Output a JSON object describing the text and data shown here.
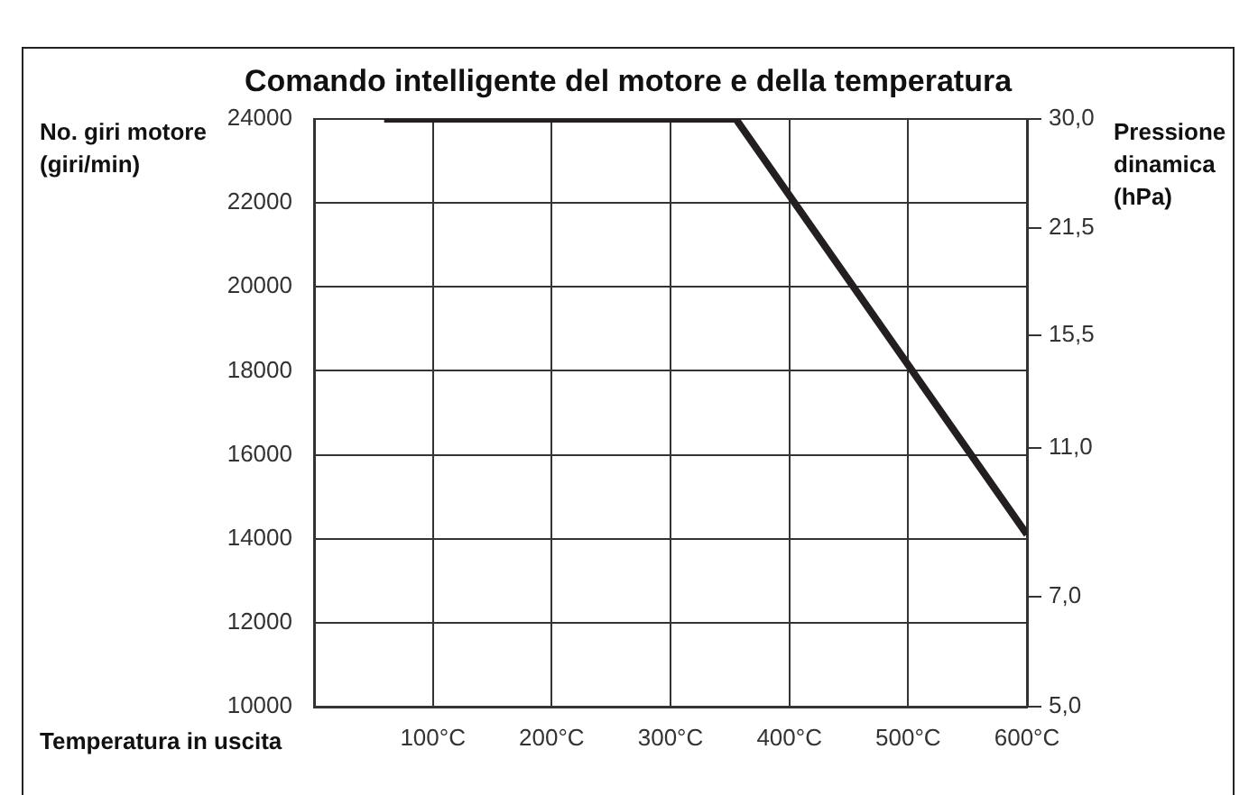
{
  "chart_data": {
    "type": "line",
    "title": "Comando intelligente del motore e della temperatura",
    "ylabel": "No. giri motore (giri/min)",
    "y2label": "Pressione dinamica (hPa)",
    "xlabel": "Temperatura in uscita",
    "series": [
      {
        "color": "#231f20",
        "x": [
          59,
          355,
          600
        ],
        "values": [
          24000,
          24000,
          14100
        ]
      }
    ],
    "xlim": [
      0,
      600
    ],
    "xticks": [
      {
        "value": 100,
        "label": "100°C"
      },
      {
        "value": 200,
        "label": "200°C"
      },
      {
        "value": 300,
        "label": "300°C"
      },
      {
        "value": 400,
        "label": "400°C"
      },
      {
        "value": 500,
        "label": "500°C"
      },
      {
        "value": 600,
        "label": "600°C"
      }
    ],
    "ylim": [
      10000,
      24000
    ],
    "yticks": [
      10000,
      12000,
      14000,
      16000,
      18000,
      20000,
      22000,
      24000
    ],
    "y2lim": [
      5,
      30
    ],
    "log": "y2",
    "y2ticks": [
      {
        "value": 30,
        "label": "30,0"
      },
      {
        "value": 21.5,
        "label": "21,5"
      },
      {
        "value": 15.5,
        "label": "15,5"
      },
      {
        "value": 11,
        "label": "11,0"
      },
      {
        "value": 7,
        "label": "7,0"
      },
      {
        "value": 5,
        "label": "5,0"
      }
    ],
    "grid": true,
    "marker": "none",
    "line_style": "solid",
    "legend": false
  }
}
